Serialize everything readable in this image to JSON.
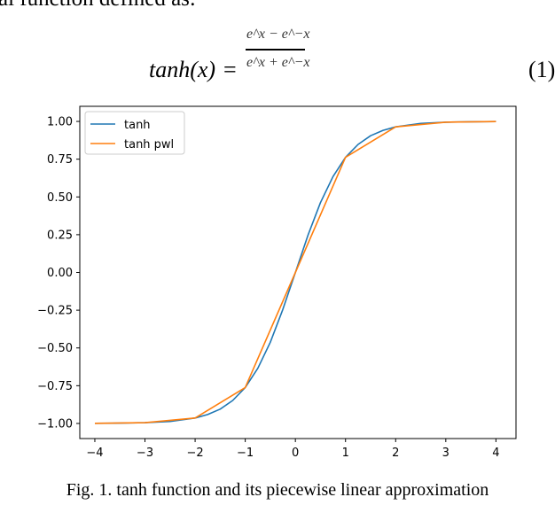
{
  "paper": {
    "top_fragment": "al function defined as:",
    "equation": {
      "lhs": "tanh(x)",
      "eq": "=",
      "numerator": "e^x − e^−x",
      "denominator": "e^x + e^−x",
      "number": "(1)"
    },
    "caption": "Fig. 1.   tanh function and its piecewise linear approximation"
  },
  "chart_data": {
    "type": "line",
    "xlim": [
      -4.3,
      4.4
    ],
    "ylim": [
      -1.1,
      1.1
    ],
    "xticks": [
      "−4",
      "−3",
      "−2",
      "−1",
      "0",
      "1",
      "2",
      "3",
      "4"
    ],
    "yticks": [
      "1.00",
      "0.75",
      "0.50",
      "0.25",
      "0.00",
      "−0.25",
      "−0.50",
      "−0.75",
      "−1.00"
    ],
    "legend_position": "top-left",
    "grid": false,
    "series": [
      {
        "name": "tanh",
        "color": "#1f77b4",
        "x": [
          -4,
          -3.5,
          -3,
          -2.5,
          -2,
          -1.75,
          -1.5,
          -1.25,
          -1,
          -0.75,
          -0.5,
          -0.25,
          0,
          0.25,
          0.5,
          0.75,
          1,
          1.25,
          1.5,
          1.75,
          2,
          2.5,
          3,
          3.5,
          4
        ],
        "y": [
          -0.999,
          -0.998,
          -0.995,
          -0.987,
          -0.964,
          -0.941,
          -0.905,
          -0.848,
          -0.762,
          -0.635,
          -0.462,
          -0.245,
          0,
          0.245,
          0.462,
          0.635,
          0.762,
          0.848,
          0.905,
          0.941,
          0.964,
          0.987,
          0.995,
          0.998,
          0.999
        ]
      },
      {
        "name": "tanh pwl",
        "color": "#ff7f0e",
        "x": [
          -4,
          -3,
          -2,
          -1,
          0,
          1,
          2,
          3,
          4
        ],
        "y": [
          -0.999,
          -0.995,
          -0.964,
          -0.762,
          0,
          0.762,
          0.964,
          0.995,
          0.999
        ]
      }
    ]
  }
}
